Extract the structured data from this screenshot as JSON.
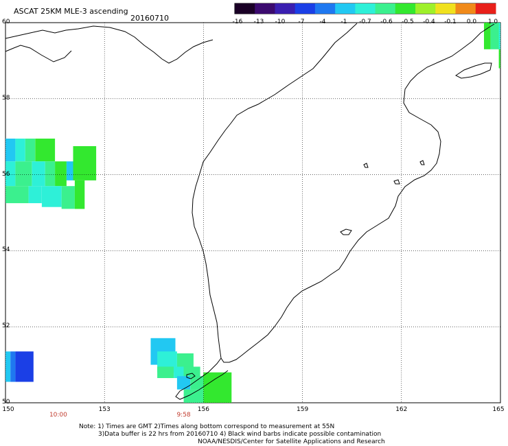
{
  "header": {
    "title": "ASCAT 25KM MLE-3 ascending",
    "date": "20160710"
  },
  "colorbar": {
    "labels": [
      "-16",
      "-13",
      "-10",
      "-7",
      "-4",
      "-1",
      "-0.7",
      "-0.6",
      "-0.5",
      "-0.4",
      "-0.1",
      "0.0",
      "1.0"
    ],
    "colors": [
      "#1a0026",
      "#3b0a6e",
      "#3a1fb0",
      "#1b3fe6",
      "#1f78f0",
      "#22c8f2",
      "#2ef0d8",
      "#3bf08e",
      "#33e82f",
      "#9ef02a",
      "#f0e11e",
      "#f08a1a",
      "#e8201a"
    ]
  },
  "axes": {
    "x_ticks": [
      "150",
      "153",
      "156",
      "159",
      "162",
      "165"
    ],
    "y_ticks": [
      "60",
      "58",
      "56",
      "54",
      "52",
      "50"
    ],
    "lon_range": [
      150,
      165
    ],
    "lat_range": [
      50,
      60
    ]
  },
  "times": [
    {
      "label": "10:00",
      "lon": 151.6
    },
    {
      "label": "9:58",
      "lon": 155.4
    }
  ],
  "notes": [
    "Note: 1) Times are GMT 2)Times along bottom correspond to measurement at 55N",
    "3)Data buffer is 22 hrs from 20160710 4) Black wind barbs indicate possible contamination",
    "NOAA/NESDIS/Center for Satellite Applications and Research"
  ],
  "data_cells": [
    {
      "lon": 150.0,
      "lat": 56.95,
      "w": 0.3,
      "h": 0.6,
      "color": "#22c8f2"
    },
    {
      "lon": 150.3,
      "lat": 56.95,
      "w": 0.3,
      "h": 0.6,
      "color": "#2ef0d8"
    },
    {
      "lon": 150.6,
      "lat": 56.95,
      "w": 0.3,
      "h": 0.6,
      "color": "#3bf08e"
    },
    {
      "lon": 150.9,
      "lat": 56.95,
      "w": 0.6,
      "h": 0.6,
      "color": "#33e82f"
    },
    {
      "lon": 150.0,
      "lat": 56.35,
      "w": 0.3,
      "h": 0.65,
      "color": "#2ef0d8"
    },
    {
      "lon": 150.3,
      "lat": 56.35,
      "w": 0.5,
      "h": 0.65,
      "color": "#3bf08e"
    },
    {
      "lon": 150.8,
      "lat": 56.35,
      "w": 0.4,
      "h": 0.65,
      "color": "#2ef0d8"
    },
    {
      "lon": 151.2,
      "lat": 56.35,
      "w": 0.3,
      "h": 0.65,
      "color": "#3bf08e"
    },
    {
      "lon": 151.5,
      "lat": 56.35,
      "w": 0.35,
      "h": 0.65,
      "color": "#33e82f"
    },
    {
      "lon": 152.05,
      "lat": 56.75,
      "w": 0.7,
      "h": 0.9,
      "color": "#33e82f"
    },
    {
      "lon": 151.85,
      "lat": 56.35,
      "w": 0.2,
      "h": 0.5,
      "color": "#22c8f2"
    },
    {
      "lon": 150.0,
      "lat": 55.7,
      "w": 0.7,
      "h": 0.45,
      "color": "#3bf08e"
    },
    {
      "lon": 150.7,
      "lat": 55.7,
      "w": 0.4,
      "h": 0.45,
      "color": "#2ef0d8"
    },
    {
      "lon": 151.1,
      "lat": 55.7,
      "w": 0.6,
      "h": 0.55,
      "color": "#2ef0d8"
    },
    {
      "lon": 151.7,
      "lat": 55.7,
      "w": 0.4,
      "h": 0.6,
      "color": "#3bf08e"
    },
    {
      "lon": 152.1,
      "lat": 55.85,
      "w": 0.3,
      "h": 0.75,
      "color": "#33e82f"
    },
    {
      "lon": 150.0,
      "lat": 51.35,
      "w": 0.15,
      "h": 0.8,
      "color": "#22c8f2"
    },
    {
      "lon": 150.15,
      "lat": 51.35,
      "w": 0.15,
      "h": 0.8,
      "color": "#1f78f0"
    },
    {
      "lon": 150.3,
      "lat": 51.35,
      "w": 0.55,
      "h": 0.8,
      "color": "#1b3fe6"
    },
    {
      "lon": 154.4,
      "lat": 51.7,
      "w": 0.75,
      "h": 0.7,
      "color": "#22c8f2"
    },
    {
      "lon": 154.6,
      "lat": 51.35,
      "w": 0.6,
      "h": 0.55,
      "color": "#2ef0d8"
    },
    {
      "lon": 155.2,
      "lat": 51.3,
      "w": 0.5,
      "h": 0.6,
      "color": "#3bf08e"
    },
    {
      "lon": 154.6,
      "lat": 50.95,
      "w": 0.5,
      "h": 0.3,
      "color": "#3bf08e"
    },
    {
      "lon": 155.1,
      "lat": 50.95,
      "w": 0.3,
      "h": 0.3,
      "color": "#2ef0d8"
    },
    {
      "lon": 155.4,
      "lat": 50.95,
      "w": 0.5,
      "h": 0.3,
      "color": "#3bf08e"
    },
    {
      "lon": 155.2,
      "lat": 50.7,
      "w": 0.4,
      "h": 0.35,
      "color": "#22c8f2"
    },
    {
      "lon": 155.6,
      "lat": 50.7,
      "w": 0.4,
      "h": 0.35,
      "color": "#3bf08e"
    },
    {
      "lon": 155.4,
      "lat": 50.35,
      "w": 0.6,
      "h": 0.35,
      "color": "#3bf08e"
    },
    {
      "lon": 156.0,
      "lat": 50.8,
      "w": 0.85,
      "h": 0.8,
      "color": "#33e82f"
    },
    {
      "lon": 164.5,
      "lat": 60.0,
      "w": 0.2,
      "h": 0.7,
      "color": "#33e82f"
    },
    {
      "lon": 164.7,
      "lat": 60.0,
      "w": 0.3,
      "h": 0.7,
      "color": "#3bf08e"
    },
    {
      "lon": 164.95,
      "lat": 60.0,
      "w": 0.05,
      "h": 0.7,
      "color": "#2ef0d8"
    },
    {
      "lon": 164.95,
      "lat": 59.3,
      "w": 0.25,
      "h": 0.5,
      "color": "#33e82f"
    }
  ]
}
